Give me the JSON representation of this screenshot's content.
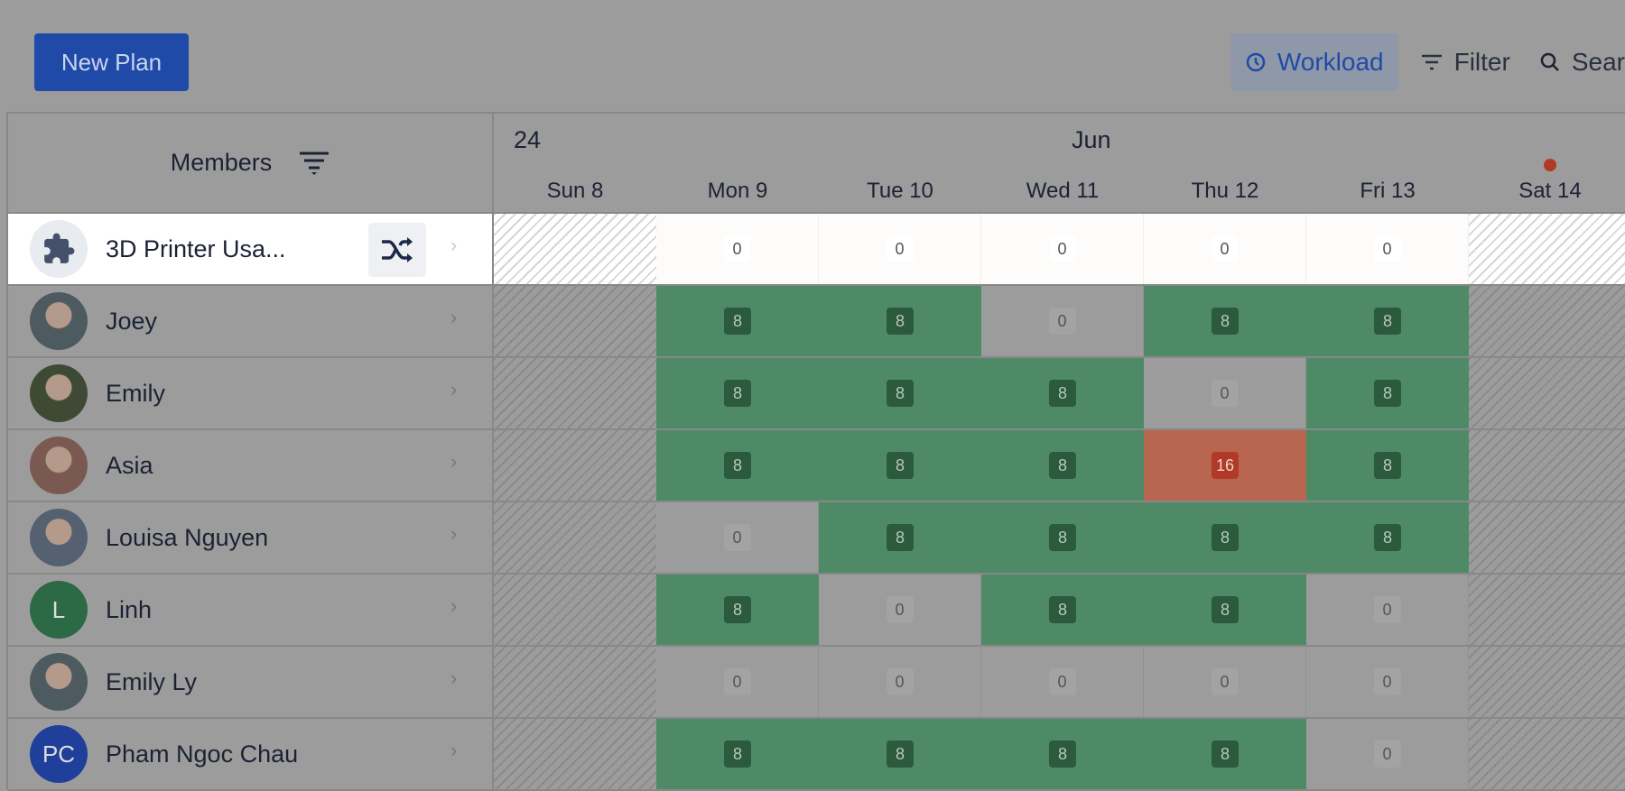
{
  "toolbar": {
    "new_plan": "New Plan",
    "workload": "Workload",
    "filter": "Filter",
    "search": "Sear"
  },
  "header": {
    "members": "Members",
    "year": "24",
    "month": "Jun",
    "days": [
      "Sun 8",
      "Mon 9",
      "Tue 10",
      "Wed 11",
      "Thu 12",
      "Fri 13",
      "Sat 14"
    ],
    "today_marker_day": "Sat 14"
  },
  "colors": {
    "primary": "#1f4aa8",
    "available": "#4f8a67",
    "overloaded": "#b86650",
    "today": "#b03a25"
  },
  "rows": [
    {
      "name": "3D Printer Usa...",
      "avatar": "puzzle-icon",
      "highlighted": true,
      "hours": [
        null,
        0,
        0,
        0,
        0,
        0,
        null
      ]
    },
    {
      "name": "Joey",
      "avatar": "photo",
      "hours": [
        null,
        8,
        8,
        0,
        8,
        8,
        null
      ]
    },
    {
      "name": "Emily",
      "avatar": "photo",
      "hours": [
        null,
        8,
        8,
        8,
        0,
        8,
        null
      ]
    },
    {
      "name": "Asia",
      "avatar": "photo",
      "hours": [
        null,
        8,
        8,
        8,
        16,
        8,
        null
      ]
    },
    {
      "name": "Louisa Nguyen",
      "avatar": "photo",
      "hours": [
        null,
        0,
        8,
        8,
        8,
        8,
        null
      ]
    },
    {
      "name": "Linh",
      "avatar": "L",
      "avatar_color": "#2b6a45",
      "hours": [
        null,
        8,
        0,
        8,
        8,
        0,
        null
      ]
    },
    {
      "name": "Emily Ly",
      "avatar": "photo",
      "hours": [
        null,
        0,
        0,
        0,
        0,
        0,
        null
      ]
    },
    {
      "name": "Pham Ngoc Chau",
      "avatar": "PC",
      "avatar_color": "#1f3f9a",
      "hours": [
        null,
        8,
        8,
        8,
        8,
        0,
        null
      ]
    }
  ]
}
